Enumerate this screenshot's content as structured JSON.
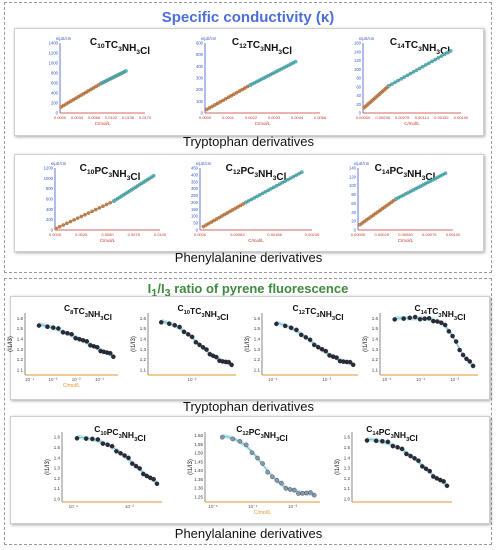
{
  "colors": {
    "orange": "#d98a4c",
    "cyan": "#44c9d8",
    "dark": "#2a2a3a",
    "blueTitle": "#4c6edb",
    "greenTitle": "#3f8a3f",
    "axisBlue": "#3a56c8",
    "axisOrange": "#e09a2a",
    "fit": "#a7dbe3"
  },
  "section_titles": {
    "conductivity": "Specific conductivity (κ)",
    "fluorescence": "I1/I3 ratio of pyrene fluorescence"
  },
  "row_labels": {
    "trp1": "Tryptophan derivatives",
    "phe1": "Phenylalanine derivatives",
    "trp2": "Tryptophan derivatives",
    "phe2": "Phenylalanine derivatives"
  },
  "chart_data": [
    {
      "type": "scatter",
      "group": "conductivity-tryptophan",
      "title": "C10TC3NH3Cl",
      "ylabel": "κ/μS/cm",
      "xlabel": "C/mol/L",
      "ylim": [
        0,
        1400
      ],
      "xlim": [
        0,
        0.017
      ],
      "yticks": [
        "0",
        "200",
        "400",
        "600",
        "800",
        "1000",
        "1200",
        "1400"
      ],
      "xticks": [
        "0.0000",
        "0.0034",
        "0.0068",
        "0.0102",
        "0.0136",
        "0.0170"
      ],
      "break_x": 0.0082,
      "series": [
        {
          "points": [
            [
              0.0002,
              120
            ],
            [
              0.0082,
              590
            ]
          ]
        },
        {
          "points": [
            [
              0.0082,
              590
            ],
            [
              0.0132,
              840
            ]
          ]
        }
      ]
    },
    {
      "type": "scatter",
      "group": "conductivity-tryptophan",
      "title": "C12TC3NH3Cl",
      "ylabel": "κ/μS/cm",
      "xlabel": "C/mol/L",
      "ylim": [
        0,
        600
      ],
      "xlim": [
        0,
        0.0066
      ],
      "yticks": [
        "0",
        "100",
        "200",
        "300",
        "400",
        "500",
        "600"
      ],
      "xticks": [
        "0.0000",
        "0.0011",
        "0.0022",
        "0.0033",
        "0.0044",
        "0.0066"
      ],
      "break_x": 0.0026,
      "series": [
        {
          "points": [
            [
              0.0001,
              30
            ],
            [
              0.0026,
              240
            ]
          ]
        },
        {
          "points": [
            [
              0.0026,
              240
            ],
            [
              0.0052,
              440
            ]
          ]
        }
      ]
    },
    {
      "type": "scatter",
      "group": "conductivity-tryptophan",
      "title": "C14TC3NH3Cl",
      "ylabel": "κ/μS/cm",
      "xlabel": "C/mol/L",
      "ylim": [
        0,
        160
      ],
      "xlim": [
        0,
        0.0019
      ],
      "yticks": [
        "0",
        "20",
        "40",
        "60",
        "80",
        "100",
        "120",
        "140",
        "160"
      ],
      "xticks": [
        "0.00000",
        "0.00038",
        "0.00076",
        "0.00114",
        "0.00152",
        "0.00190"
      ],
      "break_x": 0.0005,
      "series": [
        {
          "points": [
            [
              2e-05,
              12
            ],
            [
              0.0005,
              62
            ]
          ]
        },
        {
          "points": [
            [
              0.0005,
              62
            ],
            [
              0.0017,
              142
            ]
          ]
        }
      ]
    },
    {
      "type": "scatter",
      "group": "conductivity-phenylalanine",
      "title": "C10PC3NH3Cl",
      "ylabel": "κ/μS/cm",
      "xlabel": "C/mol/L",
      "ylim": [
        0,
        1200
      ],
      "xlim": [
        0,
        0.01
      ],
      "yticks": [
        "0",
        "200",
        "400",
        "600",
        "800",
        "1000",
        "1200"
      ],
      "xticks": [
        "0.0000",
        "0.0025",
        "0.0050",
        "0.0075",
        "0.0100"
      ],
      "break_x": 0.0056,
      "series": [
        {
          "points": [
            [
              0.0001,
              30
            ],
            [
              0.0056,
              560
            ]
          ]
        },
        {
          "points": [
            [
              0.0056,
              560
            ],
            [
              0.0094,
              1050
            ]
          ]
        }
      ]
    },
    {
      "type": "scatter",
      "group": "conductivity-phenylalanine",
      "title": "C12PC3NH3Cl",
      "ylabel": "κ/μS/cm",
      "xlabel": "C/mol/L",
      "ylim": [
        0,
        450
      ],
      "xlim": [
        0,
        0.0033
      ],
      "yticks": [
        "0",
        "50",
        "100",
        "150",
        "200",
        "250",
        "300",
        "350",
        "400",
        "450"
      ],
      "xticks": [
        "0.0000",
        "0.00083",
        "0.00166",
        "0.00249"
      ],
      "break_x": 0.00135,
      "series": [
        {
          "points": [
            [
              0.0001,
              25
            ],
            [
              0.00135,
              200
            ]
          ]
        },
        {
          "points": [
            [
              0.00135,
              200
            ],
            [
              0.003,
              420
            ]
          ]
        }
      ]
    },
    {
      "type": "scatter",
      "group": "conductivity-phenylalanine",
      "title": "C14PC3NH3Cl",
      "ylabel": "κ/μS/cm",
      "xlabel": "C/mol/L",
      "ylim": [
        0,
        140
      ],
      "xlim": [
        0,
        0.001
      ],
      "yticks": [
        "0",
        "20",
        "40",
        "60",
        "80",
        "100",
        "120",
        "140"
      ],
      "xticks": [
        "0.00000",
        "0.00025",
        "0.00050",
        "0.00075",
        "0.00100"
      ],
      "break_x": 0.0004,
      "series": [
        {
          "points": [
            [
              2e-05,
              12
            ],
            [
              0.0004,
              70
            ]
          ]
        },
        {
          "points": [
            [
              0.0004,
              70
            ],
            [
              0.00092,
              128
            ]
          ]
        }
      ]
    },
    {
      "type": "scatter",
      "group": "pyrene-tryptophan",
      "title": "C8TC3NH3Cl",
      "ylabel": "(I1/I3)",
      "xlabel": "C/mol/L",
      "ylim": [
        1.05,
        1.65
      ],
      "xlog": [
        -4,
        -1.2
      ],
      "yticks": [
        "1.1",
        "1.2",
        "1.3",
        "1.4",
        "1.5",
        "1.6"
      ],
      "xticks": [
        "10⁻⁴",
        "10⁻³",
        "10⁻²",
        "10⁻¹"
      ],
      "sigmoid": {
        "top": 1.6,
        "bottom": 1.08,
        "x0": -2.0,
        "k": 1.3
      }
    },
    {
      "type": "scatter",
      "group": "pyrene-tryptophan",
      "title": "C10TC3NH3Cl",
      "ylabel": "(I1/I3)",
      "xlabel": "",
      "ylim": [
        1.05,
        1.65
      ],
      "xlog": [
        -4.5,
        -1.5
      ],
      "yticks": [
        "1.1",
        "1.2",
        "1.3",
        "1.4",
        "1.5",
        "1.6"
      ],
      "xticks": [
        "10⁻²"
      ],
      "sigmoid": {
        "top": 1.6,
        "bottom": 1.12,
        "x0": -2.8,
        "k": 2.2
      }
    },
    {
      "type": "scatter",
      "group": "pyrene-tryptophan",
      "title": "C12TC3NH3Cl",
      "ylabel": "(I1/I3)",
      "xlabel": "",
      "ylim": [
        1.05,
        1.65
      ],
      "xlog": [
        -5,
        -2
      ],
      "yticks": [
        "1.1",
        "1.2",
        "1.3",
        "1.4",
        "1.5",
        "1.6"
      ],
      "xticks": [
        "10⁻⁴",
        "10⁻³"
      ],
      "sigmoid": {
        "top": 1.6,
        "bottom": 1.12,
        "x0": -3.4,
        "k": 2.0
      }
    },
    {
      "type": "scatter",
      "group": "pyrene-tryptophan",
      "title": "C14TC3NH3Cl",
      "ylabel": "(I1/I3)",
      "xlabel": "",
      "ylim": [
        1.05,
        1.65
      ],
      "xlog": [
        -6,
        -3.2
      ],
      "yticks": [
        "1.1",
        "1.2",
        "1.3",
        "1.4",
        "1.5",
        "1.6"
      ],
      "xticks": [
        "10⁻⁵",
        "10⁻⁴",
        "10⁻³"
      ],
      "sigmoid": {
        "top": 1.6,
        "bottom": 1.1,
        "x0": -3.8,
        "k": 5.0
      }
    },
    {
      "type": "scatter",
      "group": "pyrene-phenylalanine",
      "title": "C10PC3NH3Cl",
      "ylabel": "(I1/I3)",
      "xlabel": "",
      "ylim": [
        0.97,
        1.65
      ],
      "xlog": [
        -4,
        -1
      ],
      "yticks": [
        "1.0",
        "1.1",
        "1.2",
        "1.3",
        "1.4",
        "1.5",
        "1.6"
      ],
      "xticks": [
        "10⁻⁴",
        "10⁻²"
      ],
      "sigmoid": {
        "top": 1.62,
        "bottom": 1.03,
        "x0": -1.8,
        "k": 2.0
      }
    },
    {
      "type": "scatter",
      "group": "pyrene-phenylalanine",
      "title": "C12PC3NH3Cl",
      "ylabel": "(I1/I3)",
      "xlabel": "C/mol/L",
      "ylim": [
        1.22,
        1.62
      ],
      "xlog": [
        -5,
        -2
      ],
      "yticks": [
        "1.25",
        "1.30",
        "1.35",
        "1.40",
        "1.45",
        "1.50",
        "1.55",
        "1.60"
      ],
      "xticks": [
        "10⁻⁵",
        "10⁻⁴",
        "10⁻³"
      ],
      "sigmoid": {
        "top": 1.61,
        "bottom": 1.26,
        "x0": -3.5,
        "k": 3.2
      }
    },
    {
      "type": "scatter",
      "group": "pyrene-phenylalanine",
      "title": "C14PC3NH3Cl",
      "ylabel": "(I1/I3)",
      "xlabel": "",
      "ylim": [
        0.97,
        1.65
      ],
      "xlog": [
        -5,
        -2.5
      ],
      "yticks": [
        "1.0",
        "1.1",
        "1.2",
        "1.3",
        "1.4",
        "1.5",
        "1.6"
      ],
      "xticks": [],
      "sigmoid": {
        "top": 1.6,
        "bottom": 1.02,
        "x0": -3.2,
        "k": 2.4
      }
    }
  ]
}
